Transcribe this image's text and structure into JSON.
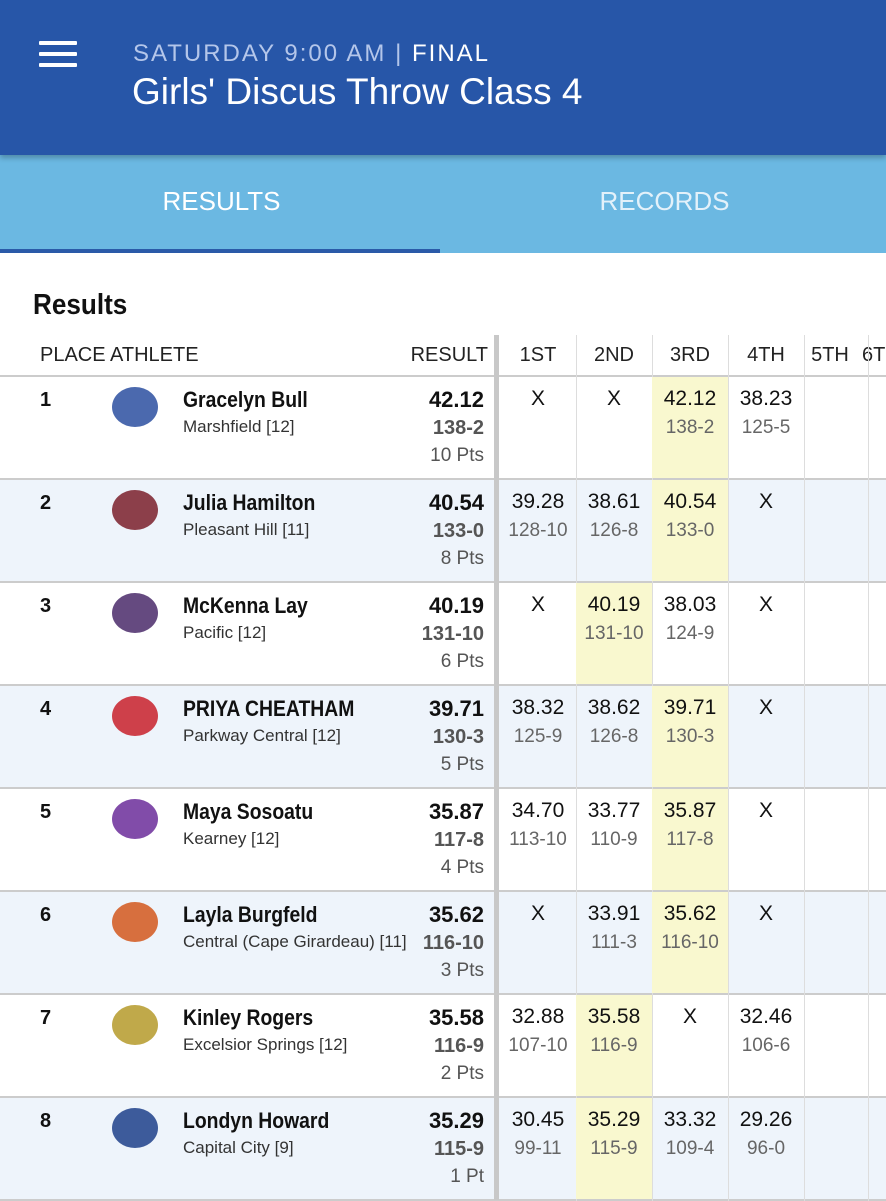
{
  "header": {
    "when": "SATURDAY 9:00 AM",
    "separator": "|",
    "status": "FINAL",
    "title": "Girls' Discus Throw Class 4"
  },
  "tabs": [
    {
      "label": "RESULTS",
      "active": true
    },
    {
      "label": "RECORDS",
      "active": false
    }
  ],
  "section_title": "Results",
  "table": {
    "columns": [
      "PLACE",
      "ATHLETE",
      "RESULT",
      "1ST",
      "2ND",
      "3RD",
      "4TH",
      "5TH",
      "6T"
    ],
    "rows": [
      {
        "place": "1",
        "name": "Gracelyn Bull",
        "team": "Marshfield [12]",
        "mark": "42.12",
        "feet": "138-2",
        "points": "10 Pts",
        "attempts": [
          {
            "mark": "X"
          },
          {
            "mark": "X"
          },
          {
            "mark": "42.12",
            "feet": "138-2",
            "best": true
          },
          {
            "mark": "38.23",
            "feet": "125-5"
          }
        ]
      },
      {
        "place": "2",
        "name": "Julia Hamilton",
        "team": "Pleasant Hill [11]",
        "mark": "40.54",
        "feet": "133-0",
        "points": "8 Pts",
        "attempts": [
          {
            "mark": "39.28",
            "feet": "128-10"
          },
          {
            "mark": "38.61",
            "feet": "126-8"
          },
          {
            "mark": "40.54",
            "feet": "133-0",
            "best": true
          },
          {
            "mark": "X"
          }
        ]
      },
      {
        "place": "3",
        "name": "McKenna Lay",
        "team": "Pacific [12]",
        "mark": "40.19",
        "feet": "131-10",
        "points": "6 Pts",
        "attempts": [
          {
            "mark": "X"
          },
          {
            "mark": "40.19",
            "feet": "131-10",
            "best": true
          },
          {
            "mark": "38.03",
            "feet": "124-9"
          },
          {
            "mark": "X"
          }
        ]
      },
      {
        "place": "4",
        "name": "PRIYA CHEATHAM",
        "team": "Parkway Central [12]",
        "mark": "39.71",
        "feet": "130-3",
        "points": "5 Pts",
        "attempts": [
          {
            "mark": "38.32",
            "feet": "125-9"
          },
          {
            "mark": "38.62",
            "feet": "126-8"
          },
          {
            "mark": "39.71",
            "feet": "130-3",
            "best": true
          },
          {
            "mark": "X"
          }
        ]
      },
      {
        "place": "5",
        "name": "Maya Sosoatu",
        "team": "Kearney [12]",
        "mark": "35.87",
        "feet": "117-8",
        "points": "4 Pts",
        "attempts": [
          {
            "mark": "34.70",
            "feet": "113-10"
          },
          {
            "mark": "33.77",
            "feet": "110-9"
          },
          {
            "mark": "35.87",
            "feet": "117-8",
            "best": true
          },
          {
            "mark": "X"
          }
        ]
      },
      {
        "place": "6",
        "name": "Layla Burgfeld",
        "team": "Central (Cape Girardeau) [11]",
        "mark": "35.62",
        "feet": "116-10",
        "points": "3 Pts",
        "attempts": [
          {
            "mark": "X"
          },
          {
            "mark": "33.91",
            "feet": "111-3"
          },
          {
            "mark": "35.62",
            "feet": "116-10",
            "best": true
          },
          {
            "mark": "X"
          }
        ]
      },
      {
        "place": "7",
        "name": "Kinley Rogers",
        "team": "Excelsior Springs [12]",
        "mark": "35.58",
        "feet": "116-9",
        "points": "2 Pts",
        "attempts": [
          {
            "mark": "32.88",
            "feet": "107-10"
          },
          {
            "mark": "35.58",
            "feet": "116-9",
            "best": true
          },
          {
            "mark": "X"
          },
          {
            "mark": "32.46",
            "feet": "106-6"
          }
        ]
      },
      {
        "place": "8",
        "name": "Londyn Howard",
        "team": "Capital City [9]",
        "mark": "35.29",
        "feet": "115-9",
        "points": "1 Pt",
        "attempts": [
          {
            "mark": "30.45",
            "feet": "99-11"
          },
          {
            "mark": "35.29",
            "feet": "115-9",
            "best": true
          },
          {
            "mark": "33.32",
            "feet": "109-4"
          },
          {
            "mark": "29.26",
            "feet": "96-0"
          }
        ]
      }
    ]
  }
}
